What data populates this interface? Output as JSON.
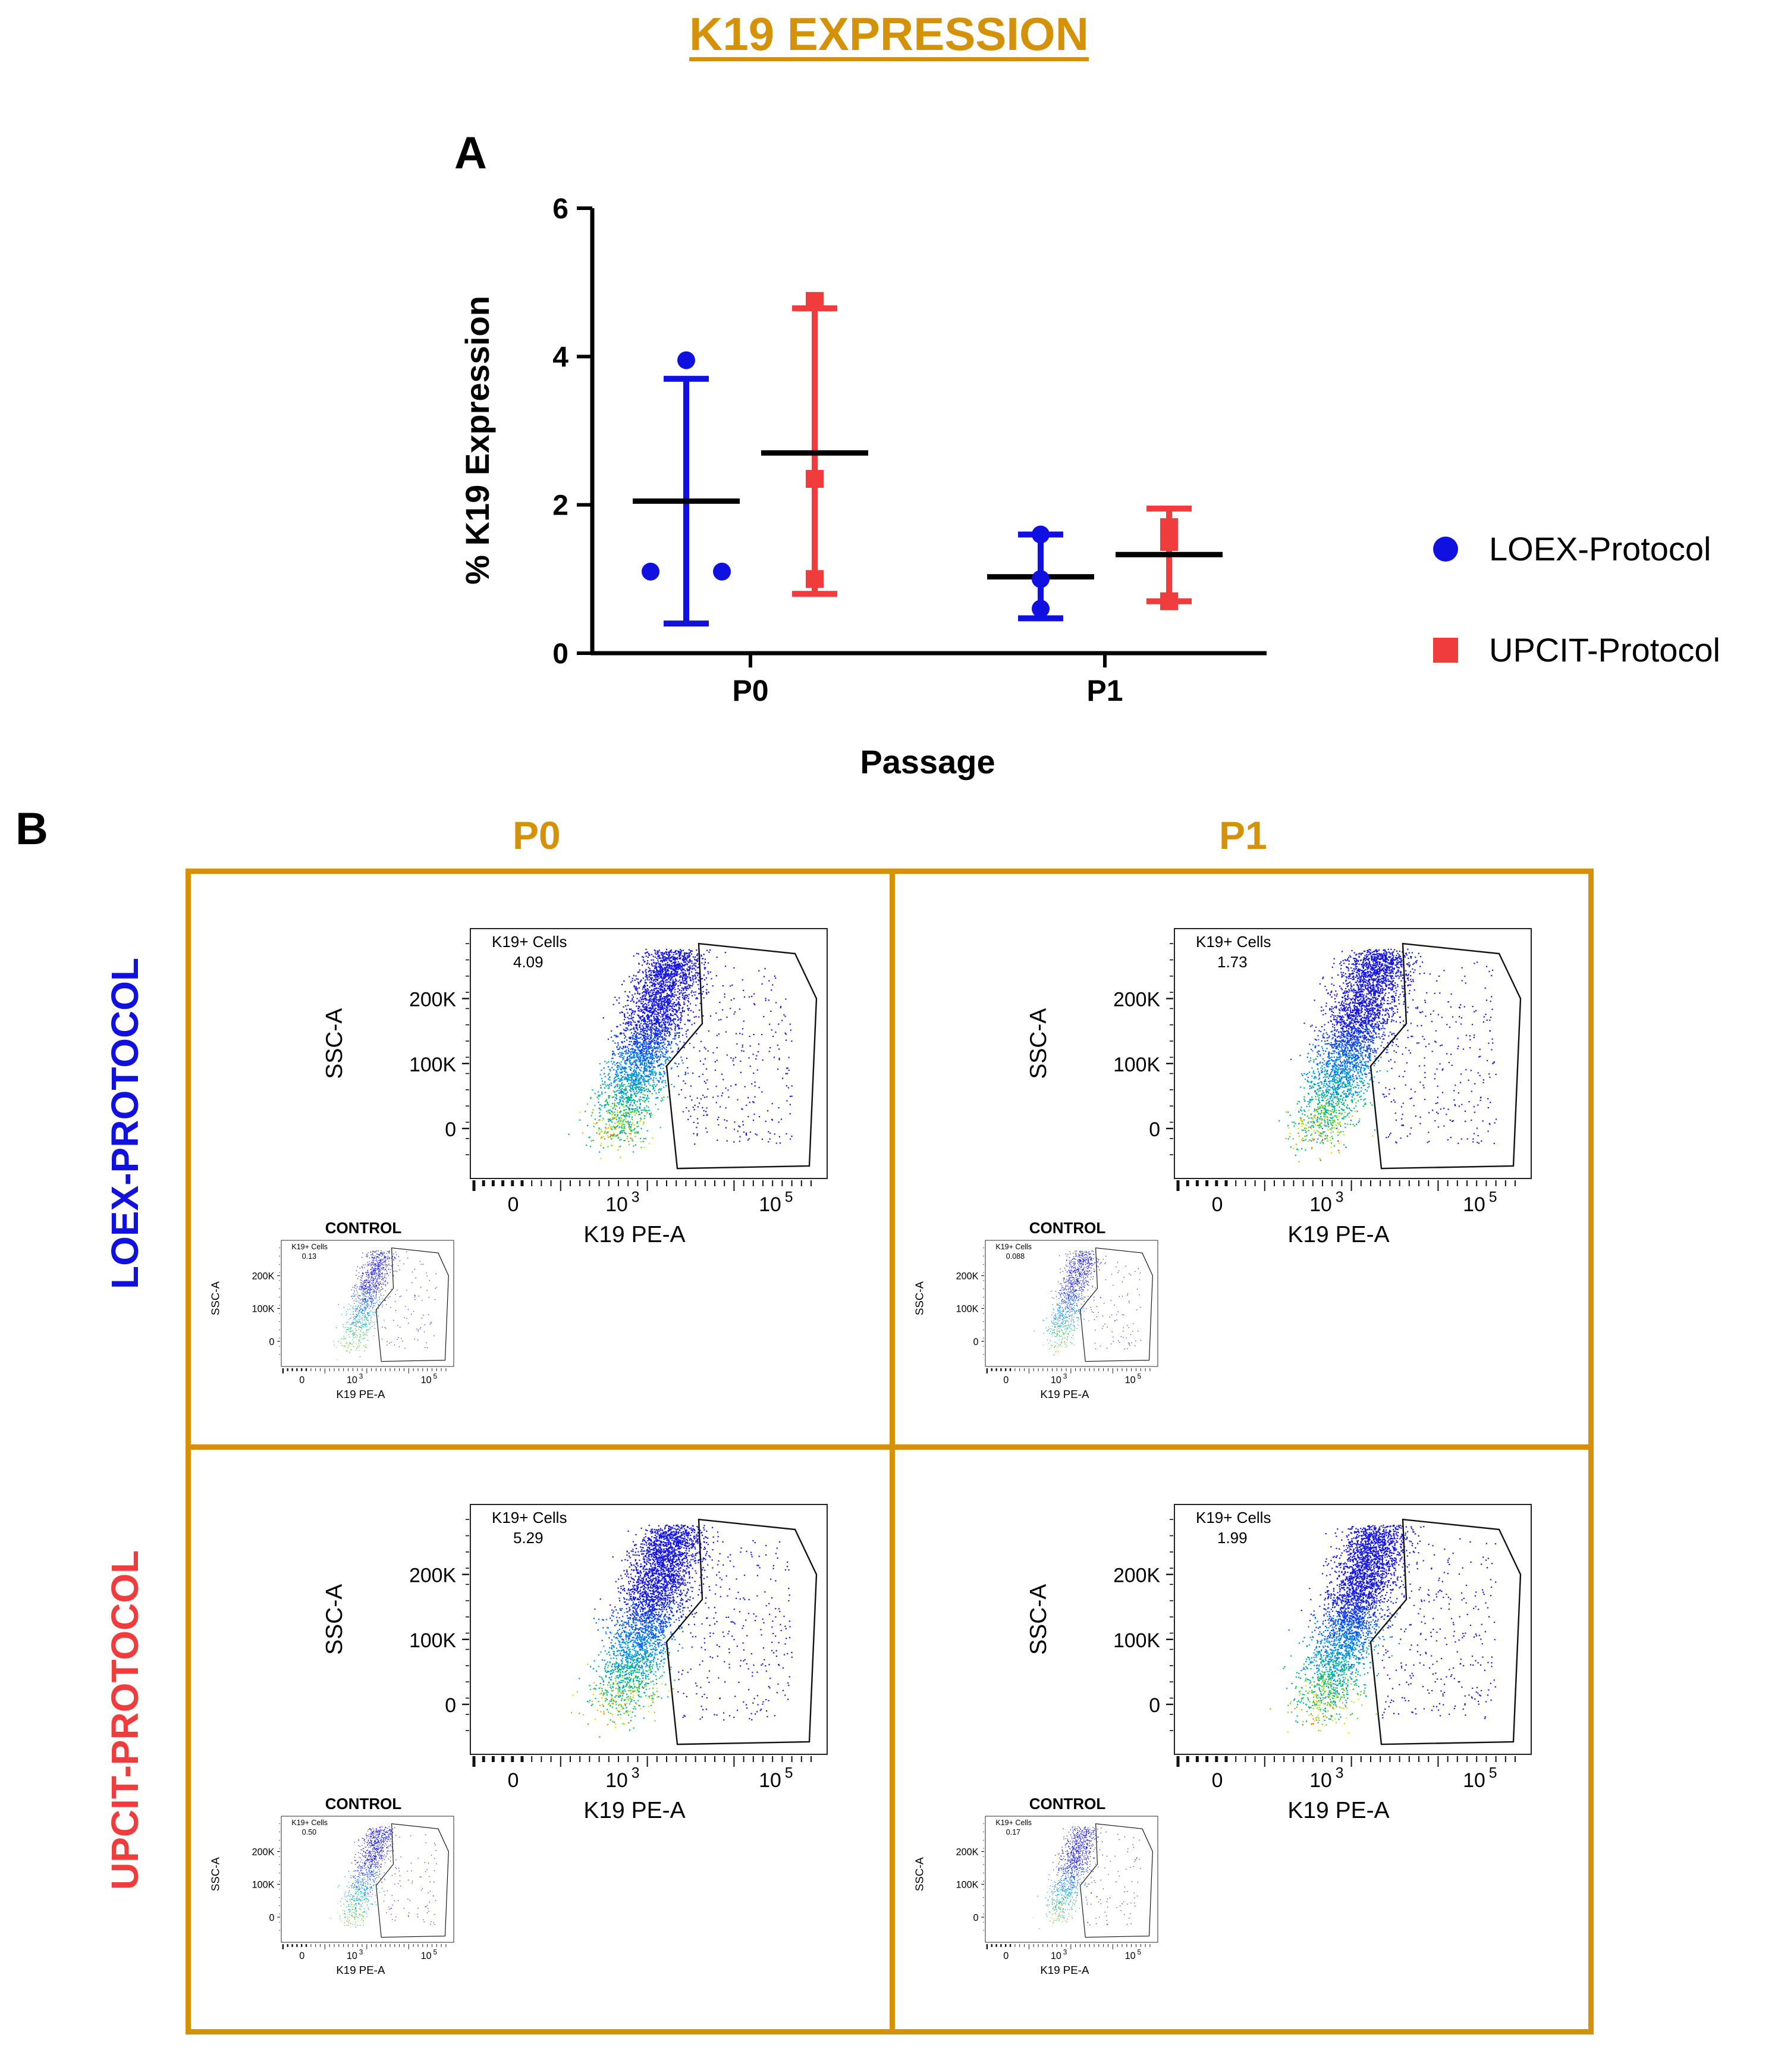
{
  "figure_title": "K19 EXPRESSION",
  "colors": {
    "gold": "#D4920A",
    "loex": "#1010E0",
    "upcit": "#F03C3C"
  },
  "panel_a": {
    "letter": "A"
  },
  "panel_b": {
    "letter": "B",
    "columns": [
      "P0",
      "P1"
    ],
    "rows": [
      "LOEX-PROTOCOL",
      "UPCIT-PROTOCOL"
    ],
    "control_label": "CONTROL",
    "gate_label": "K19+ Cells",
    "x_axis_label": "K19 PE-A",
    "y_axis_label": "SSC-A",
    "y_ticks": [
      "200K",
      "100K",
      "0"
    ],
    "x_ticks": [
      "0",
      "10",
      "10"
    ],
    "x_tick_exponents": [
      "",
      "3",
      "5"
    ],
    "plots": [
      {
        "row": "LOEX-PROTOCOL",
        "col": "P0",
        "gate_value": "4.09",
        "control_value": "0.13"
      },
      {
        "row": "LOEX-PROTOCOL",
        "col": "P1",
        "gate_value": "1.73",
        "control_value": "0.088"
      },
      {
        "row": "UPCIT-PROTOCOL",
        "col": "P0",
        "gate_value": "5.29",
        "control_value": "0.50"
      },
      {
        "row": "UPCIT-PROTOCOL",
        "col": "P1",
        "gate_value": "1.99",
        "control_value": "0.17"
      }
    ]
  },
  "chart_data": {
    "type": "scatter",
    "title": "",
    "xlabel": "Passage",
    "ylabel": "% K19 Expression",
    "categories": [
      "P0",
      "P1"
    ],
    "ylim": [
      0,
      6
    ],
    "yticks": [
      0,
      2,
      4,
      6
    ],
    "series": [
      {
        "name": "LOEX-Protocol",
        "marker": "circle",
        "points": [
          [
            3.95,
            1.1,
            1.1
          ],
          [
            1.6,
            1.0,
            0.6
          ]
        ],
        "mean": [
          2.05,
          1.03
        ],
        "sd_low": [
          0.4,
          0.47
        ],
        "sd_high": [
          3.7,
          1.6
        ]
      },
      {
        "name": "UPCIT-Protocol",
        "marker": "square",
        "points": [
          [
            4.75,
            2.35,
            1.0
          ],
          [
            1.7,
            1.5,
            0.7
          ]
        ],
        "mean": [
          2.7,
          1.33
        ],
        "sd_low": [
          0.8,
          0.7
        ],
        "sd_high": [
          4.65,
          1.95
        ]
      }
    ]
  }
}
